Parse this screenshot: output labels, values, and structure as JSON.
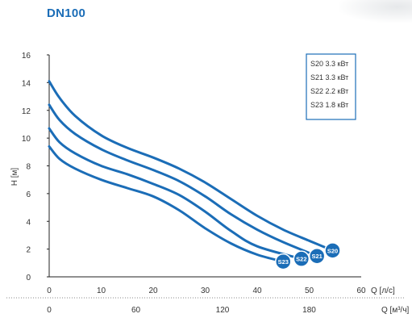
{
  "title": "DN100",
  "chart_data": {
    "type": "line",
    "title": "",
    "ylabel": "H [м]",
    "xlabel": "Q [л/с]",
    "xlabel_secondary": "Q [м³/ч]",
    "xlim": [
      0,
      60
    ],
    "ylim": [
      0,
      16
    ],
    "x_ticks": [
      0,
      10,
      20,
      30,
      40,
      50,
      60
    ],
    "y_ticks": [
      0,
      2,
      4,
      6,
      8,
      10,
      12,
      14,
      16
    ],
    "x_ticks_secondary": [
      0,
      60,
      120,
      180
    ],
    "grid": false,
    "legend_position": "top-right",
    "color": "#1b6db7",
    "series": [
      {
        "name": "S20",
        "legend": "S20 3.3 кВт",
        "x": [
          0,
          2,
          5,
          10,
          15,
          20,
          25,
          30,
          35,
          40,
          45,
          50,
          54.5
        ],
        "y": [
          14.1,
          12.9,
          11.6,
          10.2,
          9.3,
          8.6,
          7.8,
          6.8,
          5.6,
          4.4,
          3.4,
          2.6,
          1.9
        ]
      },
      {
        "name": "S21",
        "legend": "S21 3.3 кВт",
        "x": [
          0,
          2,
          5,
          10,
          15,
          20,
          25,
          30,
          35,
          40,
          45,
          51.5
        ],
        "y": [
          12.4,
          11.3,
          10.3,
          9.2,
          8.4,
          7.7,
          6.9,
          5.8,
          4.5,
          3.4,
          2.5,
          1.5
        ]
      },
      {
        "name": "S22",
        "legend": "S22 2.2 кВт",
        "x": [
          0,
          2,
          5,
          10,
          15,
          20,
          25,
          30,
          35,
          40,
          48.5
        ],
        "y": [
          10.7,
          9.7,
          8.9,
          8.0,
          7.4,
          6.7,
          5.9,
          4.7,
          3.3,
          2.2,
          1.3
        ]
      },
      {
        "name": "S23",
        "legend": "S23 1.8 кВт",
        "x": [
          0,
          2,
          5,
          10,
          15,
          20,
          25,
          30,
          35,
          40,
          45
        ],
        "y": [
          9.4,
          8.5,
          7.8,
          7.0,
          6.4,
          5.8,
          4.8,
          3.5,
          2.4,
          1.6,
          1.1
        ]
      }
    ]
  }
}
